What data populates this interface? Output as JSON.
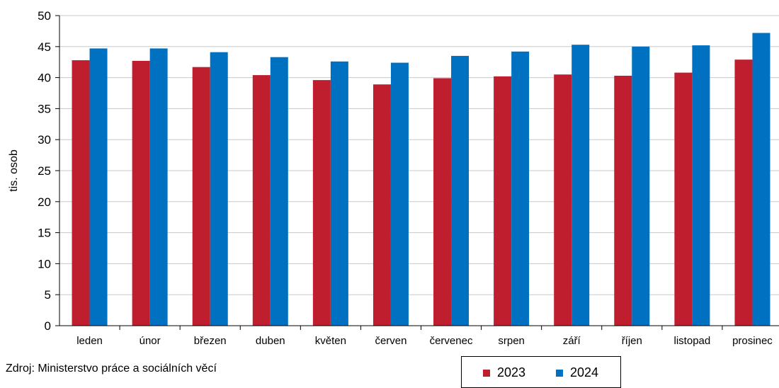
{
  "chart_data": {
    "type": "bar",
    "ylabel": "tis. osob",
    "ylim": [
      0,
      50
    ],
    "yticks": [
      0,
      5,
      10,
      15,
      20,
      25,
      30,
      35,
      40,
      45,
      50
    ],
    "grid": true,
    "legend_position": "bottom",
    "categories": [
      "leden",
      "únor",
      "březen",
      "duben",
      "květen",
      "červen",
      "červenec",
      "srpen",
      "září",
      "říjen",
      "listopad",
      "prosinec"
    ],
    "series": [
      {
        "name": "2023",
        "color": "#be1e2d",
        "values": [
          42.8,
          42.7,
          41.7,
          40.4,
          39.6,
          38.9,
          39.9,
          40.2,
          40.5,
          40.3,
          40.8,
          42.9
        ]
      },
      {
        "name": "2024",
        "color": "#0070c0",
        "values": [
          44.7,
          44.7,
          44.1,
          43.3,
          42.6,
          42.4,
          43.5,
          44.2,
          45.3,
          45.0,
          45.2,
          47.2
        ]
      }
    ]
  },
  "source": "Zdroj: Ministerstvo práce a sociálních věcí"
}
